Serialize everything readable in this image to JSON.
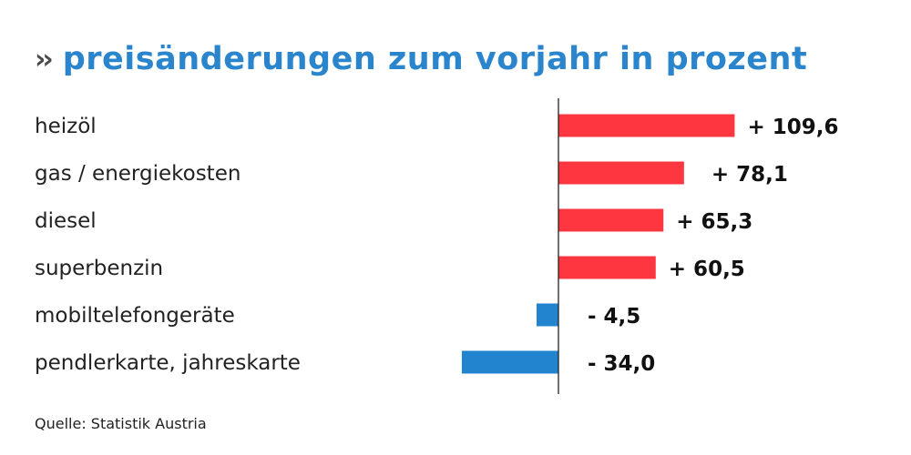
{
  "title": {
    "chevron": "››",
    "text": "preisänderungen zum vorjahr in prozent"
  },
  "source": "Quelle: Statistik Austria",
  "colors": {
    "title": "#2a85cd",
    "positive": "#fe3640",
    "negative": "#2284cf",
    "axis": "#222222"
  },
  "chart_data": {
    "type": "bar",
    "orientation": "horizontal",
    "title": "preisänderungen zum vorjahr in prozent",
    "xlabel": "",
    "ylabel": "",
    "grid": false,
    "categories": [
      "heizöl",
      "gas / energiekosten",
      "diesel",
      "superbenzin",
      "mobiltelefongeräte",
      "pendlerkarte, jahreskarte"
    ],
    "values": [
      109.6,
      78.1,
      65.3,
      60.5,
      -4.5,
      -34.0
    ],
    "value_labels": [
      "+ 109,6",
      "+ 78,1",
      "+ 65,3",
      "+ 60,5",
      "- 4,5",
      "- 34,0"
    ],
    "unit": "%",
    "source": "Quelle: Statistik Austria"
  }
}
